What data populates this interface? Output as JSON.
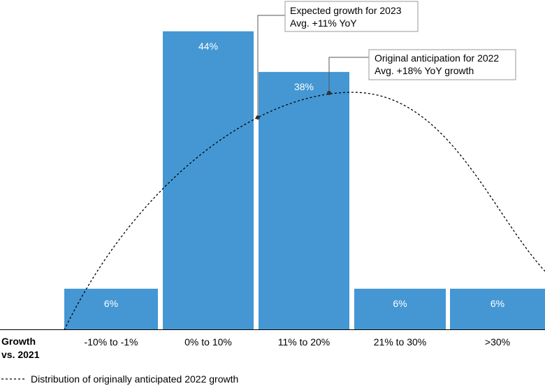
{
  "chart_data": {
    "type": "bar",
    "categories": [
      "-10% to -1%",
      "0% to 10%",
      "11% to 20%",
      "21% to 30%",
      ">30%"
    ],
    "values": [
      6,
      44,
      38,
      6,
      6
    ],
    "value_labels": [
      "6%",
      "44%",
      "38%",
      "6%",
      "6%"
    ],
    "xlabel_line1": "Growth",
    "xlabel_line2": "vs. 2021",
    "ylim": [
      0,
      48
    ],
    "bar_color": "#4497d3",
    "annotations": [
      {
        "line1": "Expected growth for 2023",
        "line2": "Avg. +11% YoY"
      },
      {
        "line1": "Original anticipation for 2022",
        "line2": "Avg. +18% YoY growth"
      }
    ],
    "legend": {
      "label": "Distribution of originally anticipated 2022 growth",
      "style": "dashed",
      "placement": "bottom-left"
    }
  }
}
